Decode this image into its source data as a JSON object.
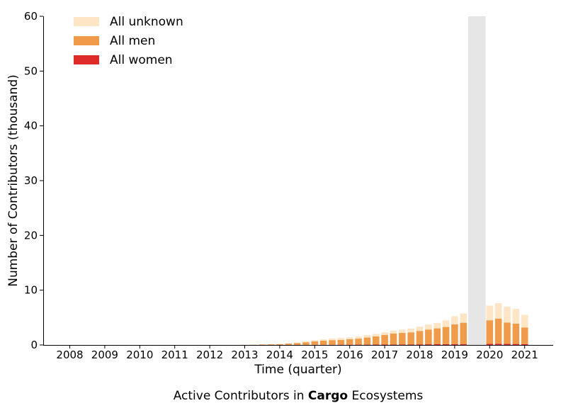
{
  "chart_data": {
    "type": "bar",
    "stacked": true,
    "title": "",
    "caption": {
      "prefix": "Active Contributors in ",
      "bold": "Cargo",
      "suffix": " Ecosystems"
    },
    "xlabel": "Time (quarter)",
    "ylabel": "Number of Contributors (thousand)",
    "ylim": [
      0,
      60
    ],
    "yticks": [
      0,
      10,
      20,
      30,
      40,
      50,
      60
    ],
    "xticks": [
      "2008",
      "2009",
      "2010",
      "2011",
      "2012",
      "2013",
      "2014",
      "2015",
      "2016",
      "2017",
      "2018",
      "2019",
      "2020",
      "2021"
    ],
    "grid": false,
    "legend_position": "top-left",
    "colors": {
      "All unknown": "#fde5c6",
      "All men": "#f09b4a",
      "All women": "#dd2c28",
      "gap": "#e6e6e6"
    },
    "gap_period": [
      "2019 Q3",
      "2019 Q4"
    ],
    "categories": [
      "2013 Q1",
      "2013 Q2",
      "2013 Q3",
      "2013 Q4",
      "2014 Q1",
      "2014 Q2",
      "2014 Q3",
      "2014 Q4",
      "2015 Q1",
      "2015 Q2",
      "2015 Q3",
      "2015 Q4",
      "2016 Q1",
      "2016 Q2",
      "2016 Q3",
      "2016 Q4",
      "2017 Q1",
      "2017 Q2",
      "2017 Q3",
      "2017 Q4",
      "2018 Q1",
      "2018 Q2",
      "2018 Q3",
      "2018 Q4",
      "2019 Q1",
      "2019 Q2",
      "2020 Q1",
      "2020 Q2",
      "2020 Q3",
      "2020 Q4",
      "2021 Q1"
    ],
    "series": [
      {
        "name": "All women",
        "values": [
          0,
          0,
          0,
          0,
          0,
          0,
          0,
          0,
          0.02,
          0.03,
          0.03,
          0.04,
          0.04,
          0.05,
          0.05,
          0.06,
          0.07,
          0.08,
          0.09,
          0.1,
          0.11,
          0.12,
          0.13,
          0.14,
          0.15,
          0.16,
          0.2,
          0.22,
          0.2,
          0.18,
          0.15
        ]
      },
      {
        "name": "All men",
        "values": [
          0.02,
          0.05,
          0.08,
          0.12,
          0.15,
          0.25,
          0.35,
          0.5,
          0.65,
          0.75,
          0.85,
          0.9,
          1.0,
          1.1,
          1.3,
          1.5,
          1.75,
          2.0,
          2.1,
          2.2,
          2.45,
          2.7,
          2.9,
          3.15,
          3.6,
          3.9,
          4.3,
          4.6,
          3.9,
          3.7,
          3.05
        ]
      },
      {
        "name": "All unknown",
        "values": [
          0.01,
          0.02,
          0.03,
          0.05,
          0.05,
          0.05,
          0.1,
          0.15,
          0.2,
          0.25,
          0.3,
          0.35,
          0.35,
          0.4,
          0.45,
          0.45,
          0.5,
          0.55,
          0.6,
          0.7,
          0.8,
          0.9,
          1.0,
          1.2,
          1.5,
          1.7,
          2.7,
          2.8,
          2.9,
          2.7,
          2.3
        ]
      }
    ]
  }
}
